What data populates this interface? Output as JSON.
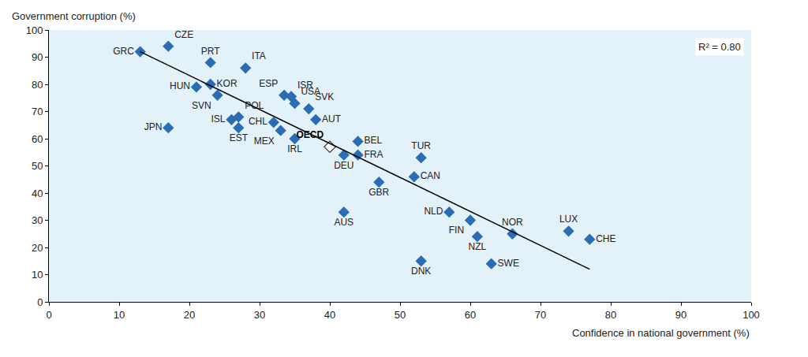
{
  "chart_data": {
    "type": "scatter",
    "x_label": "Confidence in national government (%)",
    "y_label": "Government corruption (%)",
    "annotation": "R² = 0.80",
    "xlim": [
      0,
      100
    ],
    "xticks": [
      0,
      10,
      20,
      30,
      40,
      50,
      60,
      70,
      80,
      90,
      100
    ],
    "ylim": [
      0,
      100
    ],
    "yticks": [
      0,
      10,
      20,
      30,
      40,
      50,
      60,
      70,
      80,
      90,
      100
    ],
    "grid": false,
    "series": [
      {
        "type": "scatter",
        "marker": "diamond",
        "color": "#2a6db5",
        "labels": [
          "GRC",
          "CZE",
          "PRT",
          "ITA",
          "HUN",
          "KOR",
          "SVN",
          "POL",
          "ISL",
          "EST",
          "CHL",
          "MEX",
          "JPN",
          "ESP",
          "ISR",
          "USA",
          "SVK",
          "AUT",
          "IRL",
          "DEU",
          "BEL",
          "FRA",
          "GBR",
          "AUS",
          "TUR",
          "CAN",
          "DNK",
          "NLD",
          "FIN",
          "NZL",
          "SWE",
          "NOR",
          "LUX",
          "CHE"
        ],
        "x": [
          13,
          17,
          23,
          28,
          21,
          23,
          24,
          27,
          26,
          27,
          32,
          33,
          17,
          33.5,
          34.5,
          35,
          37,
          38,
          35,
          42,
          44,
          44,
          47,
          42,
          53,
          52,
          53,
          57,
          60,
          61,
          63,
          66,
          74,
          77
        ],
        "values": [
          92,
          94,
          88,
          86,
          79,
          80,
          76,
          68,
          67,
          64,
          66,
          63,
          64,
          76,
          75.5,
          73,
          71,
          67,
          60,
          54,
          59,
          54,
          44,
          33,
          53,
          46,
          15,
          33,
          30,
          24,
          14,
          25,
          26,
          23
        ]
      },
      {
        "type": "scatter",
        "marker": "diamond-open",
        "color": "#333333",
        "labels": [
          "OECD"
        ],
        "x": [
          40
        ],
        "values": [
          57
        ]
      },
      {
        "type": "line",
        "color": "#000000",
        "x": [
          13,
          77
        ],
        "values": [
          92,
          12
        ]
      }
    ]
  }
}
